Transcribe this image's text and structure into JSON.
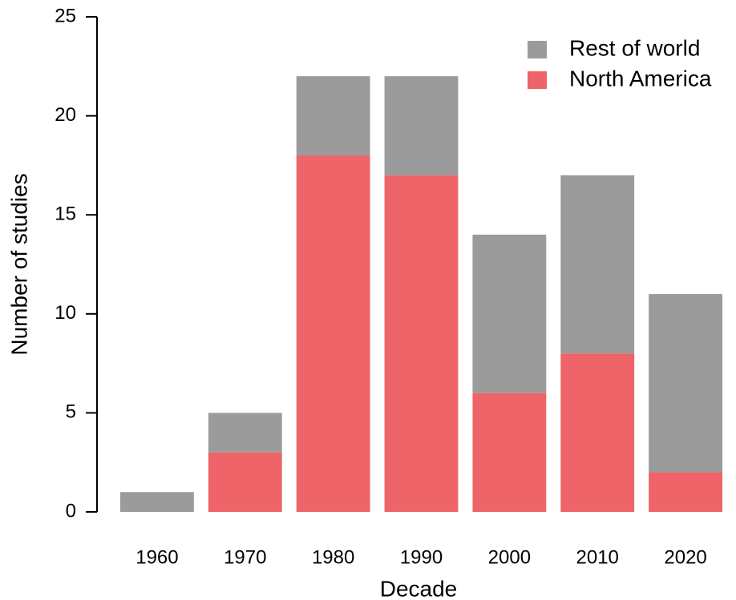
{
  "chart_data": {
    "type": "stacked_bar",
    "x_label": "Decade",
    "y_label": "Number of studies",
    "categories": [
      "1960",
      "1970",
      "1980",
      "1990",
      "2000",
      "2010",
      "2020"
    ],
    "series": [
      {
        "name": "North America",
        "color": "#ee6468",
        "values": [
          0,
          3,
          18,
          17,
          6,
          8,
          2
        ]
      },
      {
        "name": "Rest of world",
        "color": "#9b9b9b",
        "values": [
          1,
          2,
          4,
          5,
          8,
          9,
          9
        ]
      }
    ],
    "ylim": [
      0,
      25
    ],
    "yticks": [
      0,
      5,
      10,
      15,
      20,
      25
    ],
    "legend": "top-right"
  }
}
